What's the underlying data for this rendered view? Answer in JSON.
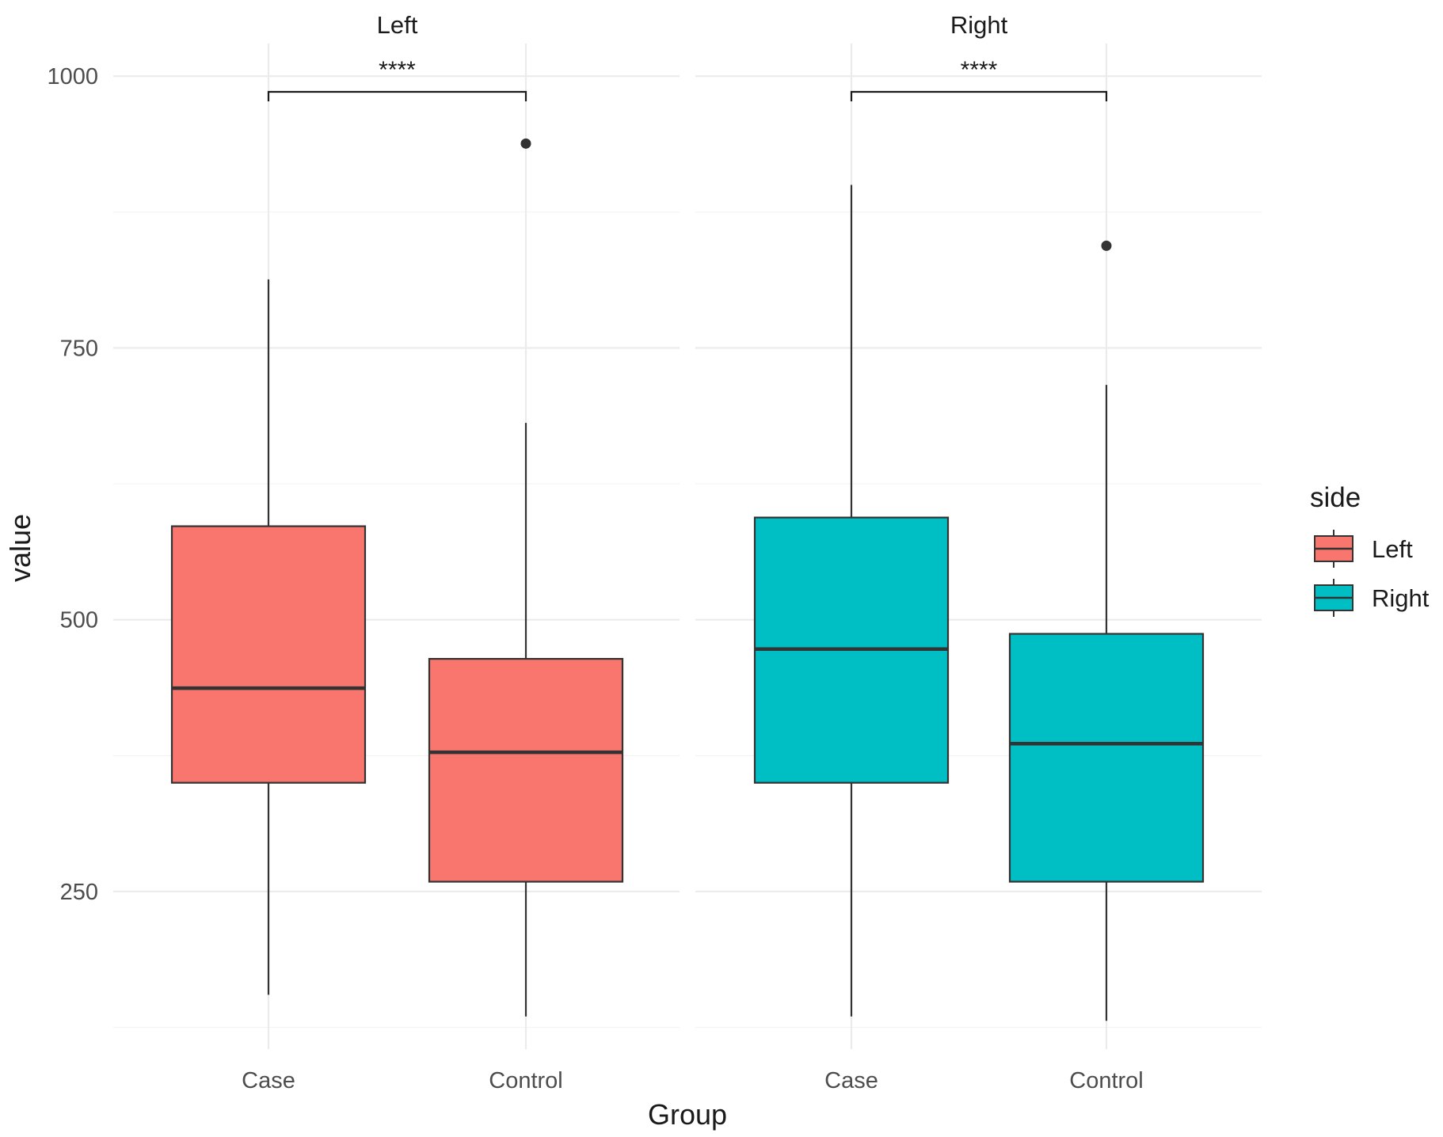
{
  "chart_data": {
    "type": "boxplot",
    "xlabel": "Group",
    "ylabel": "value",
    "ylim": [
      105,
      1030
    ],
    "yticks": [
      250,
      500,
      750,
      1000
    ],
    "categories": [
      "Case",
      "Control"
    ],
    "panels": [
      {
        "label": "Left",
        "significance": "****",
        "boxes": [
          {
            "group": "Case",
            "min": 155,
            "q1": 350,
            "median": 437,
            "q3": 586,
            "max": 813,
            "outliers": []
          },
          {
            "group": "Control",
            "min": 135,
            "q1": 259,
            "median": 378,
            "q3": 464,
            "max": 681,
            "outliers": [
              938
            ]
          }
        ]
      },
      {
        "label": "Right",
        "significance": "****",
        "boxes": [
          {
            "group": "Case",
            "min": 135,
            "q1": 350,
            "median": 473,
            "q3": 594,
            "max": 900,
            "outliers": []
          },
          {
            "group": "Control",
            "min": 131,
            "q1": 259,
            "median": 386,
            "q3": 487,
            "max": 716,
            "outliers": [
              844
            ]
          }
        ]
      }
    ],
    "legend": {
      "title": "side",
      "position": "right",
      "entries": [
        {
          "label": "Left",
          "color": "#F8766D"
        },
        {
          "label": "Right",
          "color": "#00BFC4"
        }
      ]
    },
    "grid": true
  }
}
